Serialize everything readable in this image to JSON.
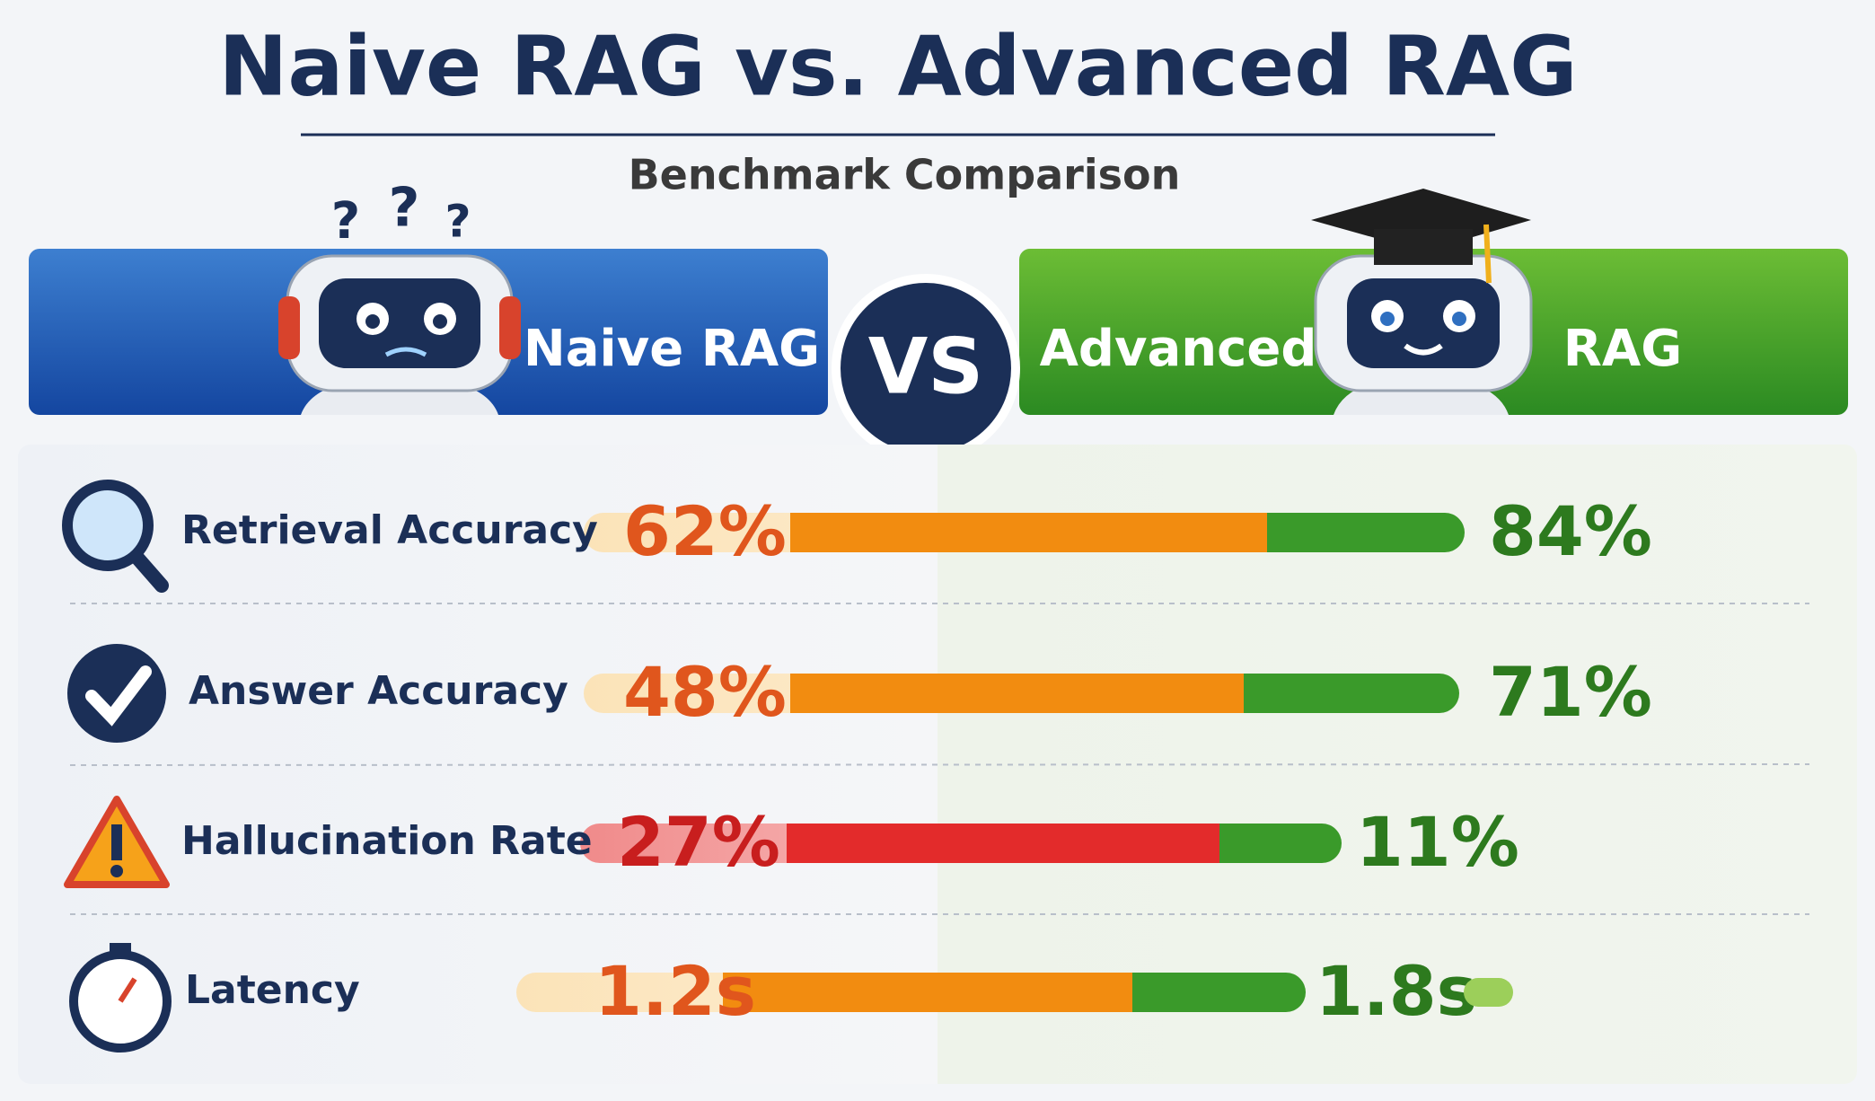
{
  "header": {
    "title": "Naive RAG vs. Advanced RAG",
    "subtitle": "Benchmark Comparison"
  },
  "banner": {
    "left_label": "Naive RAG",
    "vs": "VS",
    "right_label_parts": [
      "Advanced",
      "RAG"
    ]
  },
  "metrics": [
    {
      "name": "Retrieval Accuracy",
      "naive": "62%",
      "advanced": "84%"
    },
    {
      "name": "Answer Accuracy",
      "naive": "48%",
      "advanced": "71%"
    },
    {
      "name": "Hallucination Rate",
      "naive": "27%",
      "advanced": "11%"
    },
    {
      "name": "Latency",
      "naive": "1.2s",
      "advanced": "1.8s"
    }
  ]
}
